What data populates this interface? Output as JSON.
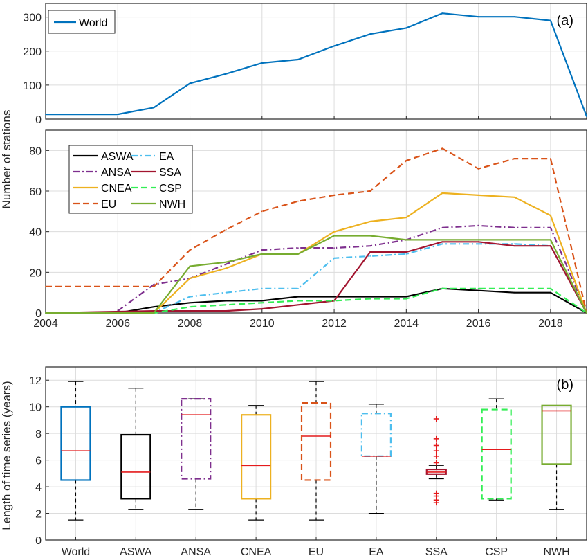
{
  "chart_data": [
    {
      "type": "line",
      "panel_label": "(a)",
      "ylabel": "Number of stations",
      "ylim": [
        0,
        340
      ],
      "yticks": [
        0,
        100,
        200,
        300
      ],
      "xlim": [
        2004,
        2019
      ],
      "x": [
        2004,
        2005,
        2006,
        2007,
        2008,
        2009,
        2010,
        2011,
        2012,
        2013,
        2014,
        2015,
        2016,
        2017,
        2018,
        2019
      ],
      "series": [
        {
          "name": "World",
          "color": "#0072BD",
          "dash": "solid",
          "values": [
            14,
            14,
            14,
            34,
            105,
            133,
            165,
            175,
            215,
            250,
            268,
            311,
            301,
            301,
            290,
            8
          ]
        }
      ],
      "legend": "top-left",
      "grid": true
    },
    {
      "type": "line",
      "ylim": [
        0,
        90
      ],
      "yticks": [
        0,
        20,
        40,
        60,
        80
      ],
      "xlim": [
        2004,
        2019
      ],
      "xticks": [
        2004,
        2006,
        2008,
        2010,
        2012,
        2014,
        2016,
        2018
      ],
      "xtick_labels": [
        "2004",
        "2006",
        "2008",
        "2010",
        "2012",
        "2014",
        "2016",
        "2018"
      ],
      "legend": "top-left",
      "grid": true,
      "series": [
        {
          "name": "ASWA",
          "color": "#000000",
          "dash": "solid",
          "x": [
            2004,
            2006,
            2007,
            2008,
            2009,
            2010,
            2011,
            2012,
            2013,
            2014,
            2015,
            2016,
            2017,
            2018,
            2019
          ],
          "values": [
            0,
            0,
            3,
            5,
            6,
            6,
            8,
            8,
            8,
            8,
            12,
            11,
            10,
            10,
            0
          ]
        },
        {
          "name": "ANSA",
          "color": "#7E2F8E",
          "dash": "dashdot",
          "x": [
            2006,
            2007,
            2008,
            2009,
            2010,
            2011,
            2012,
            2013,
            2014,
            2015,
            2016,
            2017,
            2018,
            2019
          ],
          "values": [
            1,
            14,
            17,
            24,
            31,
            32,
            32,
            33,
            36,
            42,
            43,
            42,
            42,
            0
          ]
        },
        {
          "name": "CNEA",
          "color": "#EDB120",
          "dash": "solid",
          "x": [
            2004,
            2007,
            2008,
            2009,
            2010,
            2011,
            2012,
            2013,
            2014,
            2015,
            2016,
            2017,
            2018,
            2019
          ],
          "values": [
            0,
            0,
            17,
            22,
            29,
            29,
            40,
            45,
            47,
            59,
            58,
            57,
            48,
            0
          ]
        },
        {
          "name": "EU",
          "color": "#D95319",
          "dash": "dashed",
          "x": [
            2004,
            2007,
            2008,
            2009,
            2010,
            2011,
            2012,
            2013,
            2014,
            2015,
            2016,
            2017,
            2018,
            2019
          ],
          "values": [
            13,
            13,
            31,
            41,
            50,
            55,
            58,
            60,
            75,
            81,
            71,
            76,
            76,
            0
          ]
        },
        {
          "name": "EA",
          "color": "#4DBEEE",
          "dash": "dashdot",
          "x": [
            2004,
            2007,
            2008,
            2009,
            2010,
            2011,
            2012,
            2013,
            2014,
            2015,
            2016,
            2017,
            2018,
            2019
          ],
          "values": [
            0,
            0,
            8,
            10,
            12,
            12,
            27,
            28,
            29,
            34,
            34,
            34,
            33,
            0
          ]
        },
        {
          "name": "SSA",
          "color": "#A2142F",
          "dash": "solid",
          "x": [
            2004,
            2007,
            2008,
            2009,
            2010,
            2011,
            2012,
            2013,
            2014,
            2015,
            2016,
            2017,
            2018,
            2019
          ],
          "values": [
            0,
            1,
            1,
            1,
            2,
            4,
            6,
            30,
            30,
            35,
            35,
            33,
            33,
            0
          ]
        },
        {
          "name": "CSP",
          "color": "#33EE55",
          "dash": "dashed",
          "x": [
            2004,
            2007,
            2008,
            2009,
            2010,
            2011,
            2012,
            2013,
            2014,
            2015,
            2016,
            2017,
            2018,
            2019
          ],
          "values": [
            0,
            0,
            3,
            4,
            5,
            6,
            6,
            7,
            7,
            12,
            12,
            12,
            12,
            0
          ]
        },
        {
          "name": "NWH",
          "color": "#77AC30",
          "dash": "solid",
          "x": [
            2004,
            2007,
            2008,
            2009,
            2010,
            2011,
            2012,
            2013,
            2014,
            2015,
            2016,
            2017,
            2018,
            2019
          ],
          "values": [
            0,
            0,
            23,
            25,
            29,
            29,
            38,
            38,
            36,
            36,
            36,
            36,
            36,
            0
          ]
        }
      ]
    },
    {
      "type": "box",
      "panel_label": "(b)",
      "ylabel": "Length of time series (years)",
      "ylim": [
        0,
        13
      ],
      "yticks": [
        0,
        2,
        4,
        6,
        8,
        10,
        12
      ],
      "categories": [
        "World",
        "ASWA",
        "ANSA",
        "CNEA",
        "EU",
        "EA",
        "SSA",
        "CSP",
        "NWH"
      ],
      "boxes": [
        {
          "name": "World",
          "color": "#0072BD",
          "dash": "solid",
          "whisker_low": 1.5,
          "q1": 4.5,
          "median": 6.7,
          "q3": 10.0,
          "whisker_high": 11.9,
          "outliers": []
        },
        {
          "name": "ASWA",
          "color": "#000000",
          "dash": "solid",
          "whisker_low": 2.3,
          "q1": 3.1,
          "median": 5.1,
          "q3": 7.9,
          "whisker_high": 11.4,
          "outliers": []
        },
        {
          "name": "ANSA",
          "color": "#7E2F8E",
          "dash": "dashdot",
          "whisker_low": 2.3,
          "q1": 4.6,
          "median": 9.4,
          "q3": 10.6,
          "whisker_high": 10.6,
          "outliers": []
        },
        {
          "name": "CNEA",
          "color": "#EDB120",
          "dash": "solid",
          "whisker_low": 1.5,
          "q1": 3.1,
          "median": 5.6,
          "q3": 9.4,
          "whisker_high": 10.1,
          "outliers": []
        },
        {
          "name": "EU",
          "color": "#D95319",
          "dash": "dashed",
          "whisker_low": 1.5,
          "q1": 4.5,
          "median": 7.8,
          "q3": 10.3,
          "whisker_high": 11.9,
          "outliers": []
        },
        {
          "name": "EA",
          "color": "#4DBEEE",
          "dash": "dashdot",
          "whisker_low": 2.0,
          "q1": 6.3,
          "median": 6.3,
          "q3": 9.5,
          "whisker_high": 10.2,
          "outliers": []
        },
        {
          "name": "SSA",
          "color": "#A2142F",
          "dash": "solid",
          "whisker_low": 4.6,
          "q1": 4.95,
          "median": 5.1,
          "q3": 5.3,
          "whisker_high": 5.6,
          "outliers": [
            2.8,
            3.0,
            3.3,
            3.5,
            5.8,
            6.3,
            6.7,
            7.1,
            7.6,
            9.1
          ],
          "outlier_color": "#E41A1C"
        },
        {
          "name": "CSP",
          "color": "#33EE55",
          "dash": "dashed",
          "whisker_low": 3.0,
          "q1": 3.1,
          "median": 6.8,
          "q3": 9.8,
          "whisker_high": 10.6,
          "outliers": []
        },
        {
          "name": "NWH",
          "color": "#77AC30",
          "dash": "solid",
          "whisker_low": 2.3,
          "q1": 5.7,
          "median": 9.7,
          "q3": 10.1,
          "whisker_high": 10.1,
          "outliers": []
        }
      ],
      "median_color": "#E41A1C",
      "grid": true
    }
  ]
}
